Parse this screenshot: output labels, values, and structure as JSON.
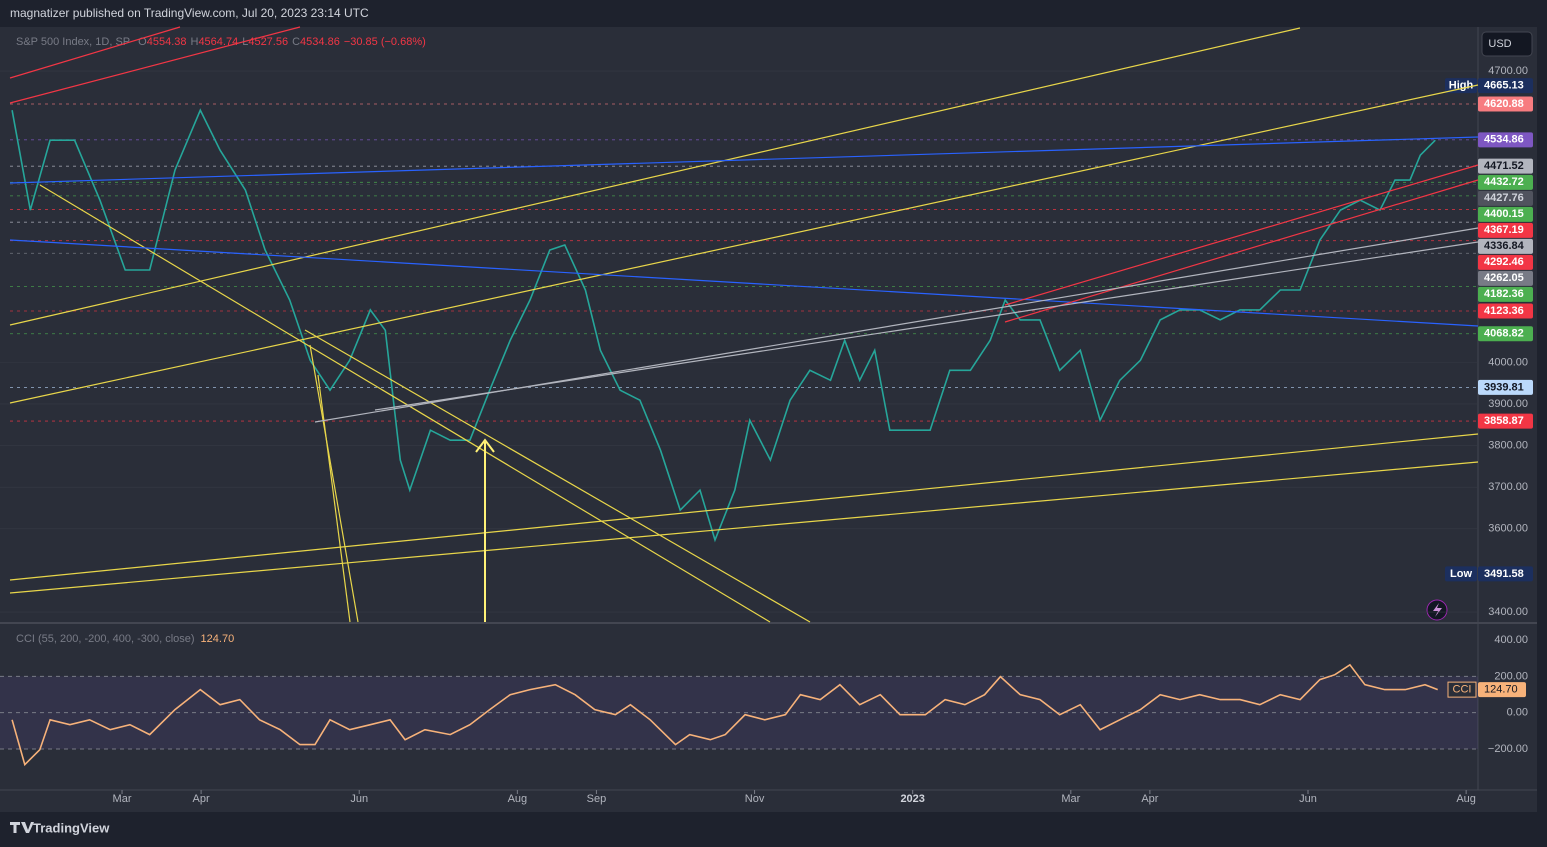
{
  "header": {
    "publisher": "magnatizer published on TradingView.com, Jul 20, 2023 23:14 UTC"
  },
  "currency": "USD",
  "footer": "TradingView",
  "chart_data": [
    {
      "type": "line",
      "title": "S&P 500 Index, 1D, SP",
      "legend": [
        {
          "key": "O",
          "value": 4554.38
        },
        {
          "key": "H",
          "value": 4564.74
        },
        {
          "key": "L",
          "value": 4527.56
        },
        {
          "key": "C",
          "value": 4534.86
        }
      ],
      "change": "−30.85 (−0.68%)",
      "color": "#26a69a",
      "x": [
        0.61,
        0.84,
        1.09,
        1.4,
        1.72,
        2.04,
        2.35,
        2.67,
        2.99,
        3.24,
        3.56,
        3.81,
        4.12,
        4.38,
        4.63,
        4.88,
        5.14,
        5.33,
        5.52,
        5.64,
        5.9,
        6.15,
        6.4,
        6.65,
        6.91,
        7.16,
        7.41,
        7.6,
        7.86,
        8.05,
        8.3,
        8.55,
        8.81,
        9.06,
        9.31,
        9.5,
        9.75,
        9.94,
        10.2,
        10.45,
        10.7,
        10.96,
        11.14,
        11.33,
        11.52,
        11.71,
        11.97,
        12.22,
        12.47,
        12.73,
        12.98,
        13.17,
        13.36,
        13.61,
        13.86,
        14.12,
        14.37,
        14.62,
        14.88,
        15.13,
        15.38,
        15.63,
        15.89,
        16.14,
        16.39,
        16.65,
        16.9,
        17.15,
        17.41,
        17.66,
        17.91,
        18.1,
        18.29,
        18.42,
        18.61
      ],
      "values": [
        4606,
        4366,
        4534,
        4534,
        4390,
        4222,
        4222,
        4462,
        4606,
        4510,
        4414,
        4270,
        4150,
        4005,
        3933,
        4005,
        4126,
        4077,
        3765,
        3693,
        3837,
        3813,
        3813,
        3933,
        4053,
        4150,
        4270,
        4282,
        4174,
        4029,
        3933,
        3909,
        3789,
        3645,
        3693,
        3573,
        3693,
        3861,
        3765,
        3909,
        3981,
        3957,
        4053,
        3957,
        4029,
        3837,
        3837,
        3837,
        3981,
        3981,
        4053,
        4150,
        4102,
        4102,
        3981,
        4029,
        3861,
        3957,
        4005,
        4102,
        4126,
        4126,
        4102,
        4126,
        4126,
        4174,
        4174,
        4294,
        4366,
        4390,
        4366,
        4438,
        4438,
        4498,
        4534
      ],
      "xlim": [
        0.583,
        19.15
      ],
      "xticks": [
        {
          "value": 2,
          "label": "Mar"
        },
        {
          "value": 3,
          "label": "Apr"
        },
        {
          "value": 5,
          "label": "Jun"
        },
        {
          "value": 7,
          "label": "Aug"
        },
        {
          "value": 8,
          "label": "Sep"
        },
        {
          "value": 10,
          "label": "Nov"
        },
        {
          "value": 12,
          "label": "2023"
        },
        {
          "value": 14,
          "label": "Mar"
        },
        {
          "value": 15,
          "label": "Apr"
        },
        {
          "value": 17,
          "label": "Jun"
        },
        {
          "value": 19,
          "label": "Aug"
        }
      ],
      "ylim": [
        3376,
        4806
      ],
      "yticks": [
        {
          "value": 3400,
          "label": "3400.00"
        },
        {
          "value": 3600,
          "label": "3600.00"
        },
        {
          "value": 3700,
          "label": "3700.00"
        },
        {
          "value": 3800,
          "label": "3800.00"
        },
        {
          "value": 3900,
          "label": "3900.00"
        },
        {
          "value": 4000,
          "label": "4000.00"
        },
        {
          "value": 4700,
          "label": "4700.00"
        }
      ],
      "grid": true,
      "price_tags": [
        {
          "value": 4665.13,
          "label": "High",
          "color": "#1c2f5e",
          "text_color": "#ffffff"
        },
        {
          "value": 4620.88,
          "color": "#f77c80",
          "text_color": "#ffffff"
        },
        {
          "value": 4534.86,
          "color": "#7e57c2",
          "text_color": "#ffffff"
        },
        {
          "value": 4471.52,
          "color": "#b2b5be",
          "text_color": "#131722"
        },
        {
          "value": 4432.72,
          "color": "#4caf50",
          "text_color": "#ffffff"
        },
        {
          "value": 4427.76,
          "color": "#50535e",
          "text_color": "#d1d4dc"
        },
        {
          "value": 4400.15,
          "color": "#4caf50",
          "text_color": "#ffffff"
        },
        {
          "value": 4367.19,
          "color": "#f23645",
          "text_color": "#ffffff"
        },
        {
          "value": 4336.84,
          "color": "#b2b5be",
          "text_color": "#131722"
        },
        {
          "value": 4292.46,
          "color": "#f23645",
          "text_color": "#ffffff"
        },
        {
          "value": 4262.05,
          "color": "#787b86",
          "text_color": "#ffffff"
        },
        {
          "value": 4182.36,
          "color": "#4caf50",
          "text_color": "#ffffff"
        },
        {
          "value": 4123.36,
          "color": "#f23645",
          "text_color": "#ffffff"
        },
        {
          "value": 4068.82,
          "color": "#4caf50",
          "text_color": "#ffffff"
        },
        {
          "value": 3939.81,
          "color": "#bbd9fb",
          "text_color": "#131722"
        },
        {
          "value": 3858.87,
          "color": "#f23645",
          "text_color": "#ffffff"
        },
        {
          "value": 3491.58,
          "label": "Low",
          "color": "#1c2f5e",
          "text_color": "#ffffff"
        }
      ]
    },
    {
      "type": "line",
      "title": "CCI (55, 200, -200, 400, -300, close)",
      "value_text": "124.70",
      "tag_name": "CCI",
      "color": "#f7b27a",
      "x": [
        0.61,
        0.77,
        0.96,
        1.09,
        1.34,
        1.59,
        1.85,
        2.1,
        2.35,
        2.67,
        2.99,
        3.24,
        3.49,
        3.74,
        4.0,
        4.25,
        4.44,
        4.63,
        4.88,
        5.14,
        5.39,
        5.58,
        5.83,
        6.15,
        6.4,
        6.65,
        6.91,
        7.16,
        7.48,
        7.73,
        7.98,
        8.24,
        8.43,
        8.68,
        9.0,
        9.18,
        9.44,
        9.63,
        9.88,
        10.13,
        10.39,
        10.58,
        10.83,
        11.08,
        11.33,
        11.59,
        11.84,
        12.16,
        12.41,
        12.66,
        12.91,
        13.11,
        13.36,
        13.61,
        13.86,
        14.12,
        14.37,
        14.62,
        14.88,
        15.13,
        15.38,
        15.63,
        15.89,
        16.14,
        16.39,
        16.65,
        16.9,
        17.15,
        17.34,
        17.53,
        17.72,
        17.97,
        18.23,
        18.48,
        18.64
      ],
      "values": [
        -39,
        -286,
        -204,
        -39,
        -66,
        -39,
        -94,
        -66,
        -121,
        17,
        127,
        44,
        72,
        -39,
        -94,
        -176,
        -176,
        -39,
        -94,
        -66,
        -39,
        -149,
        -94,
        -121,
        -66,
        17,
        99,
        127,
        154,
        99,
        17,
        -11,
        44,
        -39,
        -176,
        -121,
        -149,
        -121,
        -11,
        -39,
        -11,
        99,
        72,
        154,
        44,
        99,
        -11,
        -11,
        72,
        44,
        99,
        198,
        99,
        72,
        -11,
        44,
        -94,
        -39,
        17,
        99,
        72,
        99,
        72,
        72,
        44,
        99,
        72,
        182,
        209,
        264,
        154,
        127,
        127,
        154,
        127
      ],
      "xlim": [
        0.583,
        19.15
      ],
      "ylim": [
        -426,
        483
      ],
      "yticks": [
        {
          "value": 400,
          "label": "400.00"
        },
        {
          "value": 200,
          "label": "200.00"
        },
        {
          "value": 0,
          "label": "0.00"
        },
        {
          "value": -200,
          "label": "−200.00"
        }
      ],
      "levels": [
        200,
        0,
        -200
      ],
      "band_color": "rgba(126,87,194,0.12)"
    }
  ]
}
